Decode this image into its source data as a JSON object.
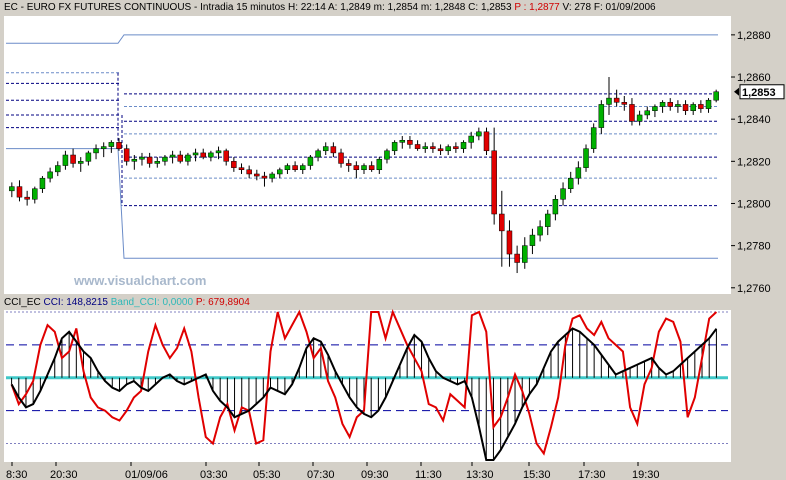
{
  "header": {
    "symbol": "EC - EURO FX FUTURES CONTINUOUS",
    "interval": "Intradia 15 minutos",
    "h_label": "H:",
    "h_value": "22:14",
    "a_label": "A:",
    "a_value": "1,2849",
    "m_label": "m:",
    "m_value": "1,2854",
    "l_label": "m:",
    "l_value": "1,2848",
    "c_label": "C:",
    "c_value": "1,2853",
    "p_label": "P :",
    "p_value": "1,2877",
    "v_label": "V:",
    "v_value": "278",
    "f_label": "F:",
    "f_value": "01/09/2006"
  },
  "indicator_header": {
    "name": "CCI_EC",
    "cci_label": "CCI:",
    "cci_value": "148,8215",
    "band_label": "Band_CCI:",
    "band_value": "0,0000",
    "p_label": "P:",
    "p_value": "679,8904"
  },
  "watermark": "www.visualchart.com",
  "last_price_label": "1,2853",
  "colors": {
    "background": "#ffffff",
    "frame": "#d4d0c8",
    "up_candle": "#00b000",
    "down_candle": "#e00000",
    "wick": "#000000",
    "band_light": "#6b8cc8",
    "band_dark": "#000080",
    "cci_black": "#000000",
    "cci_red": "#e00000",
    "zero_line": "#40c8c8",
    "grid": "#8080c0"
  },
  "chart_data": [
    {
      "type": "candlestick",
      "title": "EC - EURO FX FUTURES CONTINUOUS - Intradia 15 minutos",
      "y_ticks": [
        "1,2880",
        "1,2860",
        "1,2840",
        "1,2820",
        "1,2800",
        "1,2780",
        "1,2760"
      ],
      "y_tick_values": [
        1.288,
        1.286,
        1.284,
        1.282,
        1.28,
        1.278,
        1.276
      ],
      "ylim": [
        1.2758,
        1.2888
      ],
      "x_ticks": [
        "8:30",
        "20:30",
        "01/09/06",
        "03:30",
        "05:30",
        "07:30",
        "09:30",
        "11:30",
        "13:30",
        "15:30",
        "17:30",
        "19:30"
      ],
      "candles": [
        [
          1.2806,
          1.281,
          1.2803,
          1.2808
        ],
        [
          1.2808,
          1.2811,
          1.2801,
          1.2803
        ],
        [
          1.2803,
          1.2806,
          1.2799,
          1.2802
        ],
        [
          1.2802,
          1.2808,
          1.28,
          1.2807
        ],
        [
          1.2807,
          1.2813,
          1.2805,
          1.2812
        ],
        [
          1.2812,
          1.2817,
          1.281,
          1.2815
        ],
        [
          1.2815,
          1.282,
          1.2813,
          1.2818
        ],
        [
          1.2818,
          1.2825,
          1.2816,
          1.2823
        ],
        [
          1.2823,
          1.2826,
          1.2817,
          1.2819
        ],
        [
          1.2819,
          1.2822,
          1.2815,
          1.282
        ],
        [
          1.282,
          1.2825,
          1.2818,
          1.2824
        ],
        [
          1.2824,
          1.2828,
          1.2821,
          1.2826
        ],
        [
          1.2826,
          1.2829,
          1.2822,
          1.2827
        ],
        [
          1.2827,
          1.283,
          1.2824,
          1.2829
        ],
        [
          1.2829,
          1.2831,
          1.2825,
          1.2826
        ],
        [
          1.2826,
          1.2828,
          1.2818,
          1.282
        ],
        [
          1.282,
          1.2823,
          1.2816,
          1.2821
        ],
        [
          1.2821,
          1.2824,
          1.2818,
          1.2822
        ],
        [
          1.2822,
          1.2824,
          1.2817,
          1.2819
        ],
        [
          1.2819,
          1.2822,
          1.2817,
          1.282
        ],
        [
          1.282,
          1.2823,
          1.2818,
          1.2822
        ],
        [
          1.2822,
          1.2825,
          1.2819,
          1.2823
        ],
        [
          1.2823,
          1.2825,
          1.2819,
          1.282
        ],
        [
          1.282,
          1.2824,
          1.2818,
          1.2823
        ],
        [
          1.2823,
          1.2826,
          1.282,
          1.2824
        ],
        [
          1.2824,
          1.2826,
          1.2821,
          1.2822
        ],
        [
          1.2822,
          1.2825,
          1.282,
          1.2824
        ],
        [
          1.2824,
          1.2827,
          1.2821,
          1.2825
        ],
        [
          1.2825,
          1.2826,
          1.2818,
          1.282
        ],
        [
          1.282,
          1.2822,
          1.2815,
          1.2817
        ],
        [
          1.2817,
          1.2819,
          1.2814,
          1.2816
        ],
        [
          1.2816,
          1.2818,
          1.2812,
          1.2814
        ],
        [
          1.2814,
          1.2816,
          1.2811,
          1.2813
        ],
        [
          1.2813,
          1.2815,
          1.2808,
          1.2812
        ],
        [
          1.2812,
          1.2815,
          1.281,
          1.2814
        ],
        [
          1.2814,
          1.2817,
          1.2812,
          1.2816
        ],
        [
          1.2816,
          1.2819,
          1.2814,
          1.2818
        ],
        [
          1.2818,
          1.282,
          1.2815,
          1.2816
        ],
        [
          1.2816,
          1.2819,
          1.2814,
          1.2818
        ],
        [
          1.2818,
          1.2823,
          1.2816,
          1.2822
        ],
        [
          1.2822,
          1.2826,
          1.282,
          1.2825
        ],
        [
          1.2825,
          1.2829,
          1.2823,
          1.2827
        ],
        [
          1.2827,
          1.2829,
          1.2822,
          1.2824
        ],
        [
          1.2824,
          1.2826,
          1.2817,
          1.2819
        ],
        [
          1.2819,
          1.2821,
          1.2815,
          1.2818
        ],
        [
          1.2818,
          1.282,
          1.2812,
          1.2816
        ],
        [
          1.2816,
          1.2819,
          1.2814,
          1.2818
        ],
        [
          1.2818,
          1.282,
          1.2815,
          1.2816
        ],
        [
          1.2816,
          1.2822,
          1.2814,
          1.2821
        ],
        [
          1.2821,
          1.2826,
          1.2819,
          1.2825
        ],
        [
          1.2825,
          1.283,
          1.2823,
          1.2829
        ],
        [
          1.2829,
          1.2832,
          1.2826,
          1.283
        ],
        [
          1.283,
          1.2832,
          1.2826,
          1.2828
        ],
        [
          1.2828,
          1.283,
          1.2825,
          1.2826
        ],
        [
          1.2826,
          1.2829,
          1.2824,
          1.2827
        ],
        [
          1.2827,
          1.2829,
          1.2824,
          1.2826
        ],
        [
          1.2826,
          1.2828,
          1.2823,
          1.2825
        ],
        [
          1.2825,
          1.2828,
          1.2823,
          1.2827
        ],
        [
          1.2827,
          1.2829,
          1.2824,
          1.2826
        ],
        [
          1.2826,
          1.283,
          1.2824,
          1.2829
        ],
        [
          1.2829,
          1.2834,
          1.2826,
          1.2832
        ],
        [
          1.2832,
          1.2836,
          1.283,
          1.2834
        ],
        [
          1.2834,
          1.2836,
          1.2823,
          1.2825
        ],
        [
          1.2825,
          1.2836,
          1.279,
          1.2795
        ],
        [
          1.2795,
          1.2806,
          1.277,
          1.2787
        ],
        [
          1.2787,
          1.2792,
          1.277,
          1.2776
        ],
        [
          1.2776,
          1.278,
          1.2767,
          1.2772
        ],
        [
          1.2772,
          1.2784,
          1.2769,
          1.278
        ],
        [
          1.278,
          1.2788,
          1.2776,
          1.2785
        ],
        [
          1.2785,
          1.2792,
          1.2782,
          1.2789
        ],
        [
          1.2789,
          1.2797,
          1.2785,
          1.2795
        ],
        [
          1.2795,
          1.2804,
          1.2792,
          1.2802
        ],
        [
          1.2802,
          1.281,
          1.2799,
          1.2807
        ],
        [
          1.2807,
          1.2815,
          1.2805,
          1.2812
        ],
        [
          1.2812,
          1.282,
          1.2809,
          1.2817
        ],
        [
          1.2817,
          1.2828,
          1.2815,
          1.2826
        ],
        [
          1.2826,
          1.2838,
          1.2824,
          1.2836
        ],
        [
          1.2836,
          1.2849,
          1.2833,
          1.2847
        ],
        [
          1.2847,
          1.286,
          1.2842,
          1.285
        ],
        [
          1.285,
          1.2854,
          1.2846,
          1.2848
        ],
        [
          1.2848,
          1.2851,
          1.2844,
          1.2847
        ],
        [
          1.2847,
          1.285,
          1.2837,
          1.2839
        ],
        [
          1.2839,
          1.2844,
          1.2837,
          1.2842
        ],
        [
          1.2842,
          1.2846,
          1.284,
          1.2844
        ],
        [
          1.2844,
          1.2847,
          1.2841,
          1.2846
        ],
        [
          1.2846,
          1.2849,
          1.2843,
          1.2848
        ],
        [
          1.2848,
          1.285,
          1.2844,
          1.2846
        ],
        [
          1.2846,
          1.2849,
          1.2843,
          1.2847
        ],
        [
          1.2847,
          1.2849,
          1.2842,
          1.2844
        ],
        [
          1.2844,
          1.2848,
          1.2842,
          1.2847
        ],
        [
          1.2847,
          1.2849,
          1.2843,
          1.2845
        ],
        [
          1.2845,
          1.285,
          1.2843,
          1.2849
        ],
        [
          1.2849,
          1.2854,
          1.2848,
          1.2853
        ]
      ]
    },
    {
      "type": "line",
      "title": "CCI_EC",
      "ylim": [
        -250,
        200
      ],
      "band_levels": [
        200,
        100,
        0,
        -100,
        -200
      ],
      "series": [
        {
          "name": "CCI",
          "values": [
            -20,
            -60,
            -90,
            -80,
            -40,
            10,
            60,
            120,
            140,
            110,
            80,
            60,
            20,
            -10,
            -30,
            -40,
            -20,
            -10,
            -30,
            -40,
            -20,
            0,
            10,
            -10,
            -20,
            -10,
            0,
            10,
            -40,
            -70,
            -90,
            -120,
            -110,
            -100,
            -80,
            -60,
            -30,
            -40,
            -50,
            -20,
            30,
            90,
            120,
            110,
            70,
            20,
            -20,
            -60,
            -90,
            -110,
            -120,
            -100,
            -60,
            -10,
            40,
            90,
            130,
            110,
            60,
            20,
            0,
            -10,
            -20,
            -10,
            -60,
            -150,
            -280,
            -260,
            -220,
            -180,
            -140,
            -90,
            -50,
            -20,
            30,
            80,
            110,
            130,
            150,
            140,
            120,
            100,
            70,
            40,
            10,
            20,
            30,
            40,
            50,
            60,
            30,
            10,
            20,
            40,
            60,
            80,
            100,
            120,
            149
          ]
        },
        {
          "name": "P",
          "values": [
            -20,
            -80,
            -50,
            -10,
            100,
            160,
            140,
            60,
            80,
            150,
            20,
            -60,
            -90,
            -100,
            -120,
            -130,
            -100,
            -60,
            -40,
            80,
            160,
            100,
            60,
            90,
            150,
            80,
            -60,
            -180,
            -200,
            -120,
            -80,
            -160,
            -90,
            -100,
            -200,
            -190,
            80,
            200,
            120,
            160,
            200,
            140,
            60,
            90,
            -10,
            -60,
            -140,
            -180,
            -120,
            -100,
            200,
            220,
            120,
            200,
            150,
            100,
            60,
            20,
            -80,
            -90,
            -130,
            -50,
            -70,
            -90,
            190,
            250,
            140,
            -150,
            -120,
            -60,
            10,
            -40,
            -110,
            -200,
            -230,
            -150,
            -60,
            100,
            180,
            190,
            150,
            130,
            170,
            120,
            100,
            80,
            -90,
            -140,
            -20,
            30,
            140,
            180,
            170,
            110,
            -120,
            -60,
            60,
            180,
            220
          ]
        }
      ]
    }
  ]
}
